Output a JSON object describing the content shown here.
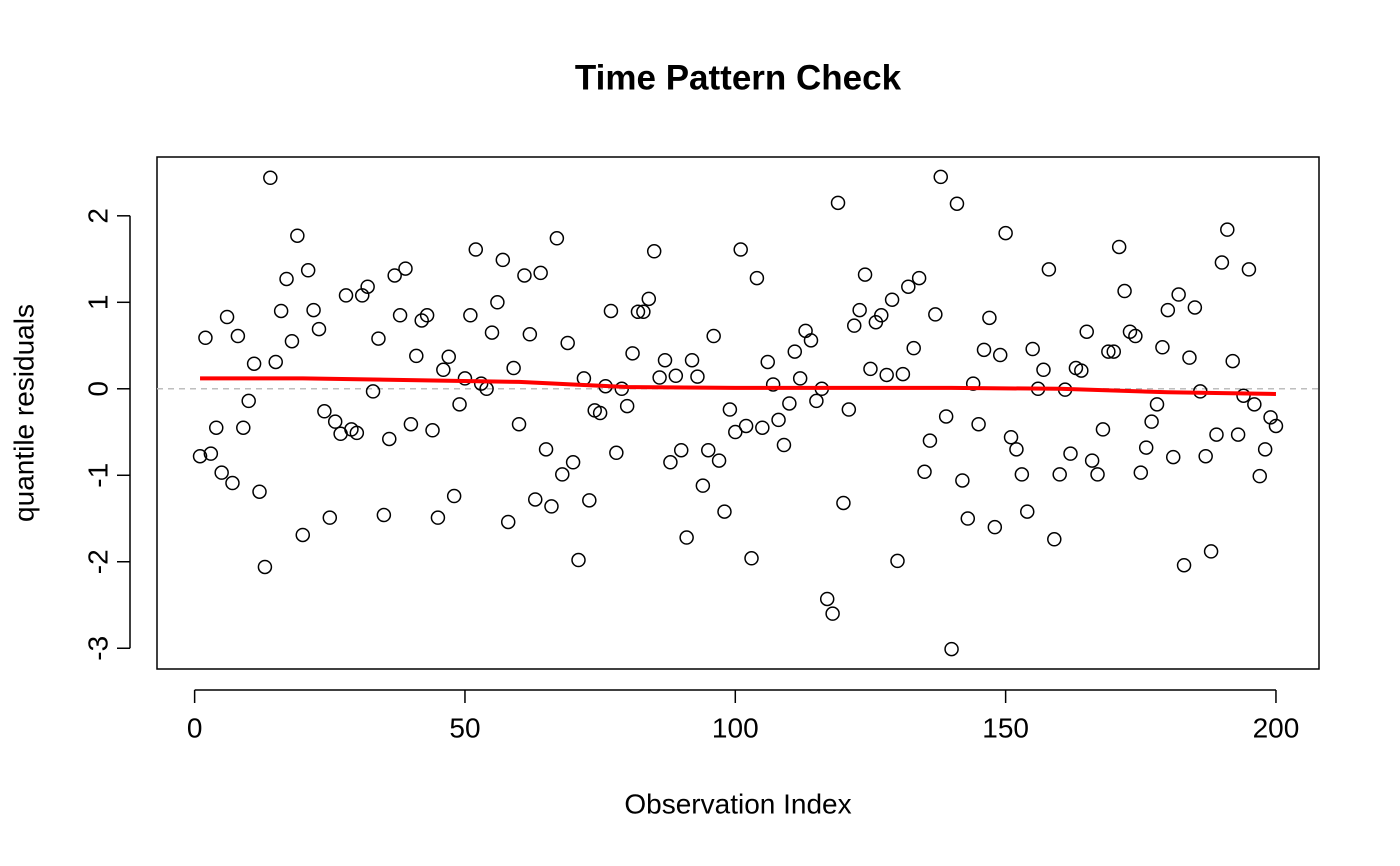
{
  "chart_data": {
    "type": "scatter",
    "title": "Time Pattern Check",
    "x_label": "Observation Index",
    "y_label": "quantile residuals",
    "x": [
      1,
      2,
      3,
      4,
      5,
      6,
      7,
      8,
      9,
      10,
      11,
      12,
      13,
      14,
      15,
      16,
      17,
      18,
      19,
      20,
      21,
      22,
      23,
      24,
      25,
      26,
      27,
      28,
      29,
      30,
      31,
      32,
      33,
      34,
      35,
      36,
      37,
      38,
      39,
      40,
      41,
      42,
      43,
      44,
      45,
      46,
      47,
      48,
      49,
      50,
      51,
      52,
      53,
      54,
      55,
      56,
      57,
      58,
      59,
      60,
      61,
      62,
      63,
      64,
      65,
      66,
      67,
      68,
      69,
      70,
      71,
      72,
      73,
      74,
      75,
      76,
      77,
      78,
      79,
      80,
      81,
      82,
      83,
      84,
      85,
      86,
      87,
      88,
      89,
      90,
      91,
      92,
      93,
      94,
      95,
      96,
      97,
      98,
      99,
      100,
      101,
      102,
      103,
      104,
      105,
      106,
      107,
      108,
      109,
      110,
      111,
      112,
      113,
      114,
      115,
      116,
      117,
      118,
      119,
      120,
      121,
      122,
      123,
      124,
      125,
      126,
      127,
      128,
      129,
      130,
      131,
      132,
      133,
      134,
      135,
      136,
      137,
      138,
      139,
      140,
      141,
      142,
      143,
      144,
      145,
      146,
      147,
      148,
      149,
      150,
      151,
      152,
      153,
      154,
      155,
      156,
      157,
      158,
      159,
      160,
      161,
      162,
      163,
      164,
      165,
      166,
      167,
      168,
      169,
      170,
      171,
      172,
      173,
      174,
      175,
      176,
      177,
      178,
      179,
      180,
      181,
      182,
      183,
      184,
      185,
      186,
      187,
      188,
      189,
      190,
      191,
      192,
      193,
      194,
      195,
      196,
      197,
      198,
      199,
      200
    ],
    "values": [
      -0.78,
      0.59,
      -0.75,
      -0.45,
      -0.97,
      0.83,
      -1.09,
      0.61,
      -0.45,
      -0.14,
      0.29,
      -1.19,
      -2.06,
      2.44,
      0.31,
      0.9,
      1.27,
      0.55,
      1.77,
      -1.69,
      1.37,
      0.91,
      0.69,
      -0.26,
      -1.49,
      -0.38,
      -0.52,
      1.08,
      -0.47,
      -0.51,
      1.08,
      1.18,
      -0.03,
      0.58,
      -1.46,
      -0.58,
      1.31,
      0.85,
      1.39,
      -0.41,
      0.38,
      0.79,
      0.85,
      -0.48,
      -1.49,
      0.22,
      0.37,
      -1.24,
      -0.18,
      0.12,
      0.85,
      1.61,
      0.06,
      0,
      0.65,
      1,
      1.49,
      -1.54,
      0.24,
      -0.41,
      1.31,
      0.63,
      -1.28,
      1.34,
      -0.7,
      -1.36,
      1.74,
      -0.99,
      0.53,
      -0.85,
      -1.98,
      0.12,
      -1.29,
      -0.25,
      -0.28,
      0.03,
      0.9,
      -0.74,
      0,
      -0.2,
      0.41,
      0.89,
      0.89,
      1.04,
      1.59,
      0.13,
      0.33,
      -0.85,
      0.15,
      -0.71,
      -1.72,
      0.33,
      0.14,
      -1.12,
      -0.71,
      0.61,
      -0.83,
      -1.42,
      -0.24,
      -0.5,
      1.61,
      -0.43,
      -1.96,
      1.28,
      -0.45,
      0.31,
      0.05,
      -0.36,
      -0.65,
      -0.17,
      0.43,
      0.12,
      0.67,
      0.56,
      -0.14,
      0,
      -2.43,
      -2.6,
      2.15,
      -1.32,
      -0.24,
      0.73,
      0.91,
      1.32,
      0.23,
      0.77,
      0.85,
      0.16,
      1.03,
      -1.99,
      0.17,
      1.18,
      0.47,
      1.28,
      -0.96,
      -0.6,
      0.86,
      2.45,
      -0.32,
      -3.01,
      2.14,
      -1.06,
      -1.5,
      0.06,
      -0.41,
      0.45,
      0.82,
      -1.6,
      0.39,
      1.8,
      -0.56,
      -0.7,
      -0.99,
      -1.42,
      0.46,
      0,
      0.22,
      1.38,
      -1.74,
      -0.99,
      -0.01,
      -0.75,
      0.24,
      0.21,
      0.66,
      -0.83,
      -0.99,
      -0.47,
      0.43,
      0.43,
      1.64,
      1.13,
      0.66,
      0.61,
      -0.97,
      -0.68,
      -0.38,
      -0.18,
      0.48,
      0.91,
      -0.79,
      1.09,
      -2.04,
      0.36,
      0.94,
      -0.03,
      -0.78,
      -1.88,
      -0.53,
      1.46,
      1.84,
      0.32,
      -0.53,
      -0.08,
      1.38,
      -0.18,
      -1.01,
      -0.7,
      -0.33,
      -0.43
    ],
    "color": "#000000",
    "smooth": {
      "x": [
        1,
        20,
        40,
        60,
        70,
        80,
        100,
        120,
        140,
        160,
        180,
        200
      ],
      "values": [
        0.12,
        0.12,
        0.1,
        0.08,
        0.05,
        0.02,
        0.01,
        0.01,
        0.01,
        0.0,
        -0.04,
        -0.06
      ],
      "color": "#ff0000"
    },
    "reference_line": {
      "value": 0,
      "color": "#bebebe"
    },
    "xlim": [
      -6.96,
      207.96
    ],
    "ylim": [
      -3.24,
      2.68
    ],
    "xticks": [
      0,
      50,
      100,
      150,
      200
    ],
    "yticks": [
      -3,
      -2,
      -1,
      0,
      1,
      2
    ]
  }
}
